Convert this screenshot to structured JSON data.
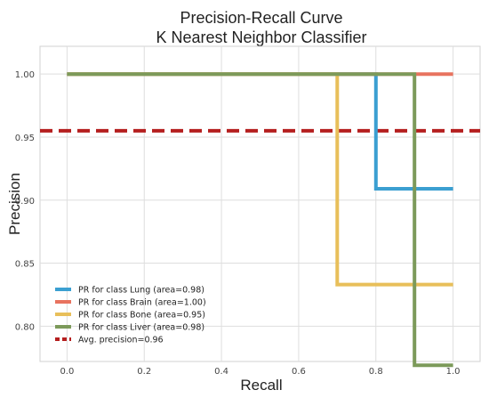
{
  "chart_data": {
    "type": "line",
    "title": "Precision-Recall Curve",
    "subtitle": "K Nearest Neighbor Classifier",
    "xlabel": "Recall",
    "ylabel": "Precision",
    "xlim": [
      -0.07,
      1.07
    ],
    "ylim": [
      0.772,
      1.022
    ],
    "xticks": [
      0.0,
      0.2,
      0.4,
      0.6,
      0.8,
      1.0
    ],
    "xtick_labels": [
      "0.0",
      "0.2",
      "0.4",
      "0.6",
      "0.8",
      "1.0"
    ],
    "yticks": [
      0.8,
      0.85,
      0.9,
      0.95,
      1.0
    ],
    "ytick_labels": [
      "0.80",
      "0.85",
      "0.90",
      "0.95",
      "1.00"
    ],
    "grid": true,
    "legend_position": "lower-left",
    "series": [
      {
        "name": "PR for class Lung (area=0.98)",
        "color": "#3b9fd1",
        "step": true,
        "x": [
          0.0,
          0.8,
          0.8,
          1.0
        ],
        "y": [
          1.0,
          1.0,
          0.909,
          0.909
        ]
      },
      {
        "name": "PR for class Brain (area=1.00)",
        "color": "#e8735f",
        "step": true,
        "x": [
          0.0,
          1.0
        ],
        "y": [
          1.0,
          1.0
        ]
      },
      {
        "name": "PR for class Bone (area=0.95)",
        "color": "#e8bf5a",
        "step": true,
        "x": [
          0.0,
          0.7,
          0.7,
          1.0
        ],
        "y": [
          1.0,
          1.0,
          0.833,
          0.833
        ]
      },
      {
        "name": "PR for class Liver (area=0.98)",
        "color": "#7c9a5a",
        "step": true,
        "x": [
          0.0,
          0.9,
          0.9,
          1.0
        ],
        "y": [
          1.0,
          1.0,
          0.769,
          0.769
        ]
      }
    ],
    "reference_line": {
      "name": "Avg. precision=0.96",
      "color": "#b51f1f",
      "style": "dashed",
      "y": 0.955
    }
  }
}
